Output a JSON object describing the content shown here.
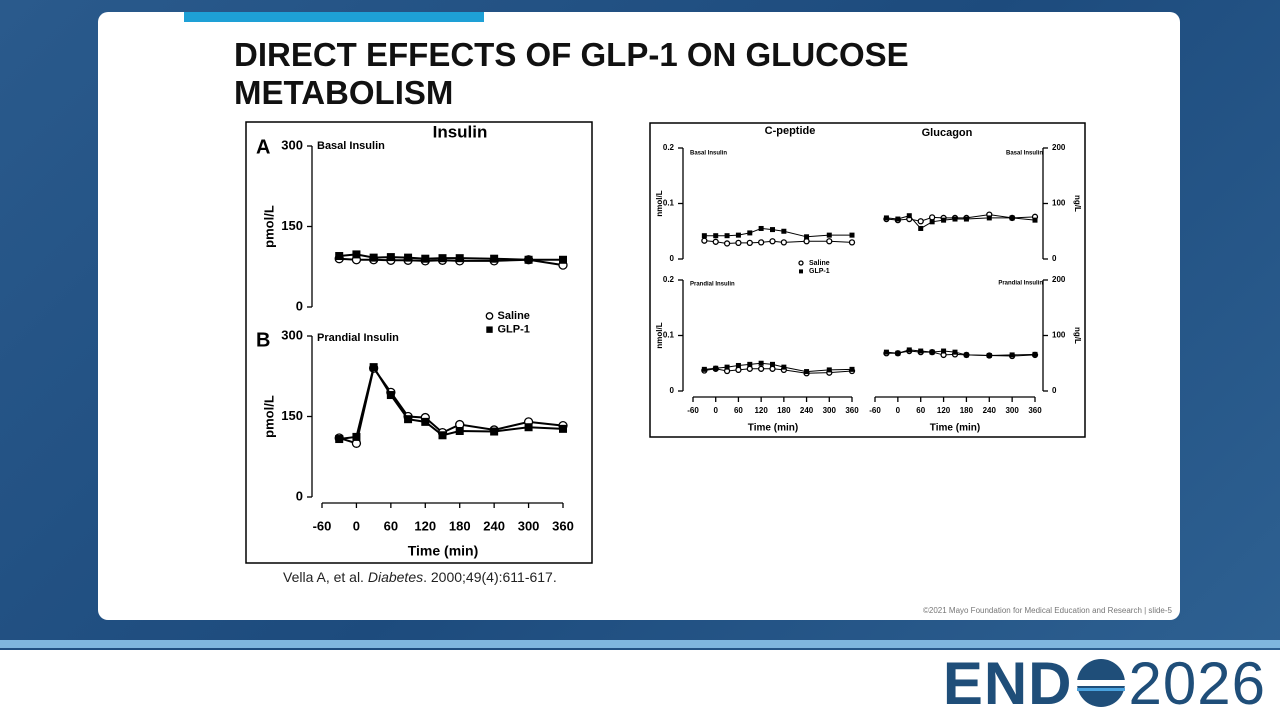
{
  "slide": {
    "title": "DIRECT EFFECTS OF GLP-1 ON GLUCOSE METABOLISM",
    "citation": [
      "Vella A, et al. ",
      "Diabetes",
      ". 2000;49(4):611-617."
    ],
    "footer": "©2021 Mayo Foundation for Medical Education and Research  |  slide-5",
    "logo": {
      "left": "END",
      "right": "2026"
    }
  },
  "chart_data": [
    {
      "type": "line",
      "title": "Insulin",
      "panel": "A",
      "subtitle": "Basal Insulin",
      "ylabel": "pmol/L",
      "x": [
        -30,
        0,
        30,
        60,
        90,
        120,
        150,
        180,
        240,
        300,
        360
      ],
      "xlim": [
        -60,
        360
      ],
      "ylim": [
        0,
        300
      ],
      "yticks": [
        0,
        150,
        300
      ],
      "y_axis_position": "left",
      "series": [
        {
          "name": "Saline",
          "color": "#000000",
          "marker": "circle",
          "values": [
            90,
            88,
            88,
            87,
            87,
            86,
            87,
            86,
            86,
            88,
            78
          ]
        },
        {
          "name": "GLP-1",
          "color": "#000000",
          "marker": "square",
          "values": [
            95,
            98,
            92,
            93,
            92,
            90,
            91,
            91,
            90,
            88,
            88
          ]
        }
      ],
      "legend": "lower right"
    },
    {
      "type": "line",
      "panel": "B",
      "subtitle": "Prandial Insulin",
      "ylabel": "pmol/L",
      "xlabel": "Time (min)",
      "x": [
        -30,
        0,
        30,
        60,
        90,
        120,
        150,
        180,
        240,
        300,
        360
      ],
      "xlim": [
        -60,
        360
      ],
      "xticks": [
        -60,
        0,
        60,
        120,
        180,
        240,
        300,
        360
      ],
      "ylim": [
        0,
        300
      ],
      "yticks": [
        0,
        150,
        300
      ],
      "y_axis_position": "left",
      "series": [
        {
          "name": "Saline",
          "color": "#000000",
          "marker": "circle",
          "values": [
            110,
            100,
            240,
            195,
            150,
            148,
            120,
            135,
            125,
            140,
            133
          ]
        },
        {
          "name": "GLP-1",
          "color": "#000000",
          "marker": "square",
          "values": [
            108,
            112,
            242,
            190,
            145,
            140,
            115,
            123,
            122,
            130,
            127
          ]
        }
      ]
    },
    {
      "type": "line",
      "title": "C-peptide",
      "subtitle": "Basal Insulin",
      "ylabel": "nmol/L",
      "x": [
        -30,
        0,
        30,
        60,
        90,
        120,
        150,
        180,
        240,
        300,
        360
      ],
      "xlim": [
        -60,
        360
      ],
      "ylim": [
        0,
        0.2
      ],
      "yticks": [
        0,
        0.1,
        0.2
      ],
      "y_axis_position": "left",
      "series": [
        {
          "name": "Saline",
          "color": "#000000",
          "marker": "circle",
          "values": [
            0.033,
            0.031,
            0.028,
            0.029,
            0.029,
            0.03,
            0.032,
            0.03,
            0.032,
            0.032,
            0.03
          ]
        },
        {
          "name": "GLP-1",
          "color": "#000000",
          "marker": "square",
          "values": [
            0.042,
            0.042,
            0.042,
            0.043,
            0.047,
            0.055,
            0.053,
            0.05,
            0.04,
            0.043,
            0.043
          ]
        }
      ],
      "legend": "lower right"
    },
    {
      "type": "line",
      "title": "Glucagon",
      "subtitle": "Basal Insulin",
      "ylabel": "ng/L",
      "x": [
        -30,
        0,
        30,
        60,
        90,
        120,
        150,
        180,
        240,
        300,
        360
      ],
      "xlim": [
        -60,
        360
      ],
      "ylim": [
        0,
        200
      ],
      "yticks": [
        0,
        100,
        200
      ],
      "y_axis_position": "right",
      "series": [
        {
          "name": "Saline",
          "color": "#000000",
          "marker": "circle",
          "values": [
            72,
            70,
            72,
            68,
            75,
            74,
            74,
            74,
            80,
            74,
            76
          ]
        },
        {
          "name": "GLP-1",
          "color": "#000000",
          "marker": "square",
          "values": [
            74,
            72,
            78,
            55,
            67,
            70,
            72,
            72,
            74,
            74,
            70
          ]
        }
      ]
    },
    {
      "type": "line",
      "subtitle": "Prandial Insulin",
      "ylabel": "nmol/L",
      "xlabel": "Time (min)",
      "x": [
        -30,
        0,
        30,
        60,
        90,
        120,
        150,
        180,
        240,
        300,
        360
      ],
      "xlim": [
        -60,
        360
      ],
      "xticks": [
        -60,
        0,
        60,
        120,
        180,
        240,
        300,
        360
      ],
      "ylim": [
        0,
        0.2
      ],
      "yticks": [
        0,
        0.1,
        0.2
      ],
      "y_axis_position": "left",
      "series": [
        {
          "name": "Saline",
          "color": "#000000",
          "marker": "circle",
          "values": [
            0.037,
            0.04,
            0.036,
            0.038,
            0.04,
            0.04,
            0.04,
            0.038,
            0.032,
            0.033,
            0.036
          ]
        },
        {
          "name": "GLP-1",
          "color": "#000000",
          "marker": "square",
          "values": [
            0.039,
            0.041,
            0.043,
            0.046,
            0.048,
            0.05,
            0.048,
            0.043,
            0.035,
            0.038,
            0.039
          ]
        }
      ]
    },
    {
      "type": "line",
      "subtitle": "Prandial Insulin",
      "ylabel": "ng/L",
      "xlabel": "Time (min)",
      "x": [
        -30,
        0,
        30,
        60,
        90,
        120,
        150,
        180,
        240,
        300,
        360
      ],
      "xlim": [
        -60,
        360
      ],
      "xticks": [
        -60,
        0,
        60,
        120,
        180,
        240,
        300,
        360
      ],
      "ylim": [
        0,
        200
      ],
      "yticks": [
        0,
        100,
        200
      ],
      "y_axis_position": "right",
      "series": [
        {
          "name": "Saline",
          "color": "#000000",
          "marker": "circle",
          "values": [
            68,
            68,
            72,
            70,
            70,
            65,
            66,
            65,
            64,
            63,
            65
          ]
        },
        {
          "name": "GLP-1",
          "color": "#000000",
          "marker": "square",
          "values": [
            70,
            68,
            74,
            72,
            70,
            72,
            70,
            65,
            64,
            65,
            66
          ]
        }
      ]
    }
  ]
}
